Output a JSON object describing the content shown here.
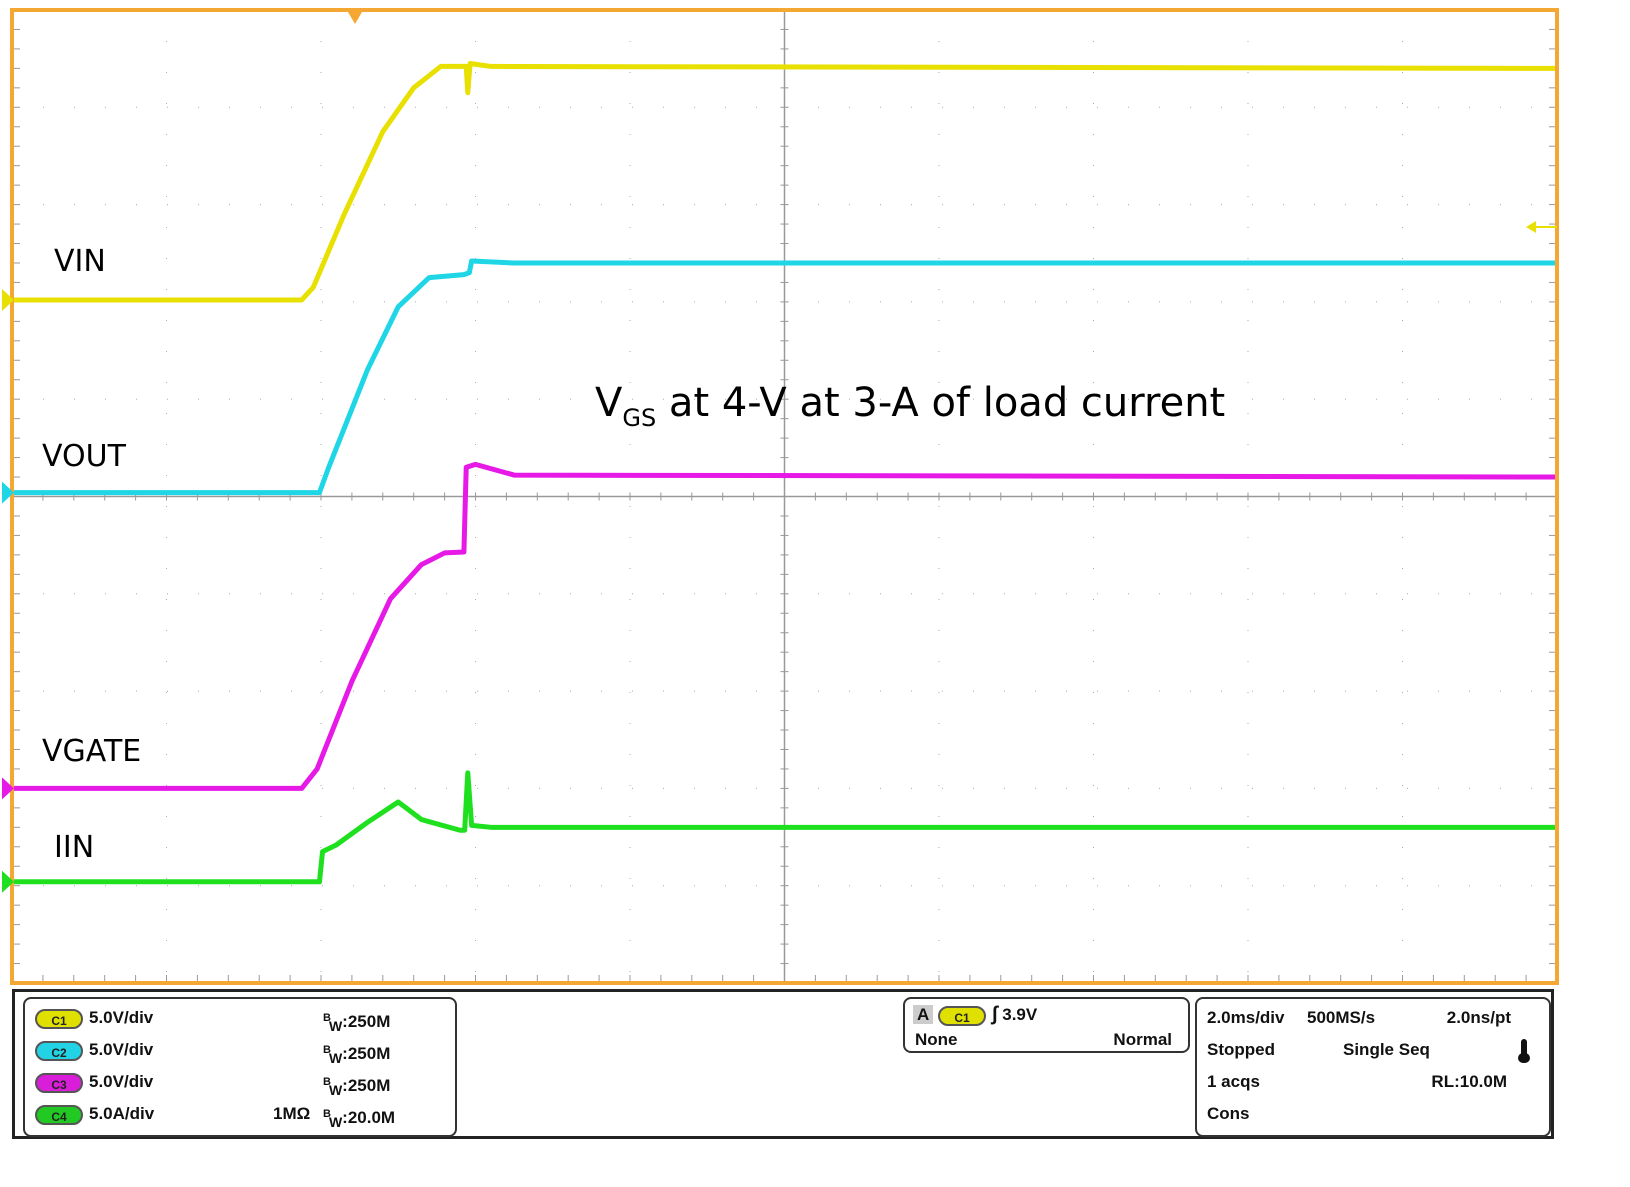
{
  "chart_data": {
    "type": "line",
    "title": "",
    "xlabel": "",
    "ylabel": "",
    "x_units": "ms",
    "y_units": "divisions",
    "xlim": [
      0,
      20
    ],
    "ylim": [
      0,
      10
    ],
    "grid": true,
    "annotation": {
      "main": "V",
      "sub": "GS",
      "rest": " at 4-V at 3-A of load current"
    },
    "series": [
      {
        "name": "VIN",
        "color": "#e8e000",
        "points": [
          [
            0,
            7.02
          ],
          [
            3.75,
            7.02
          ],
          [
            3.9,
            7.15
          ],
          [
            4.3,
            7.9
          ],
          [
            4.8,
            8.75
          ],
          [
            5.2,
            9.2
          ],
          [
            5.55,
            9.42
          ],
          [
            5.88,
            9.42
          ],
          [
            5.9,
            9.15
          ],
          [
            5.93,
            9.45
          ],
          [
            6.2,
            9.42
          ],
          [
            20,
            9.4
          ]
        ]
      },
      {
        "name": "VOUT",
        "color": "#1ed6e6",
        "points": [
          [
            0,
            5.04
          ],
          [
            3.98,
            5.04
          ],
          [
            4.1,
            5.3
          ],
          [
            4.6,
            6.3
          ],
          [
            5.0,
            6.95
          ],
          [
            5.4,
            7.25
          ],
          [
            5.85,
            7.28
          ],
          [
            5.92,
            7.3
          ],
          [
            5.95,
            7.42
          ],
          [
            6.5,
            7.4
          ],
          [
            20,
            7.4
          ]
        ]
      },
      {
        "name": "VGATE",
        "color": "#e619e6",
        "points": [
          [
            0,
            2.0
          ],
          [
            3.75,
            2.0
          ],
          [
            3.95,
            2.2
          ],
          [
            4.4,
            3.1
          ],
          [
            4.9,
            3.95
          ],
          [
            5.3,
            4.3
          ],
          [
            5.6,
            4.42
          ],
          [
            5.85,
            4.43
          ],
          [
            5.88,
            5.3
          ],
          [
            6.0,
            5.33
          ],
          [
            6.5,
            5.22
          ],
          [
            20,
            5.2
          ]
        ]
      },
      {
        "name": "IIN",
        "color": "#1ee01e",
        "points": [
          [
            0,
            1.04
          ],
          [
            3.98,
            1.04
          ],
          [
            4.02,
            1.35
          ],
          [
            4.2,
            1.42
          ],
          [
            4.6,
            1.65
          ],
          [
            5.0,
            1.86
          ],
          [
            5.3,
            1.68
          ],
          [
            5.8,
            1.57
          ],
          [
            5.86,
            1.57
          ],
          [
            5.9,
            2.16
          ],
          [
            5.95,
            1.62
          ],
          [
            6.2,
            1.6
          ],
          [
            20,
            1.6
          ]
        ]
      }
    ],
    "trace_labels": [
      "VIN",
      "VOUT",
      "VGATE",
      "IIN"
    ]
  },
  "channels": [
    {
      "id": "C1",
      "color": "#e0e000",
      "scale": "5.0V/div",
      "coupling": "",
      "bw": "250M"
    },
    {
      "id": "C2",
      "color": "#22d3e6",
      "scale": "5.0V/div",
      "coupling": "",
      "bw": "250M"
    },
    {
      "id": "C3",
      "color": "#d81ed8",
      "scale": "5.0V/div",
      "coupling": "",
      "bw": "250M"
    },
    {
      "id": "C4",
      "color": "#22c922",
      "scale": "5.0A/div",
      "coupling": "1MΩ",
      "bw": "20.0M"
    }
  ],
  "bw_prefix_b": "B",
  "bw_prefix_w": "W",
  "trigger": {
    "mode": "A",
    "source": "C1",
    "level": "3.9V",
    "coupling": "None",
    "type": "Normal",
    "edge_icon": "rising-edge-icon"
  },
  "timebase": {
    "scale": "2.0ms/div",
    "sample_rate": "500MS/s",
    "resolution": "2.0ns/pt",
    "state": "Stopped",
    "acq_mode": "Single Seq",
    "acqs": "1 acqs",
    "record_length": "RL:10.0M",
    "extra": "Cons",
    "icon": "thermometer-icon"
  },
  "colors": {
    "frame": "#f5a733",
    "trigger_marker": "#f5a733",
    "grid": "#9a9a9a"
  }
}
